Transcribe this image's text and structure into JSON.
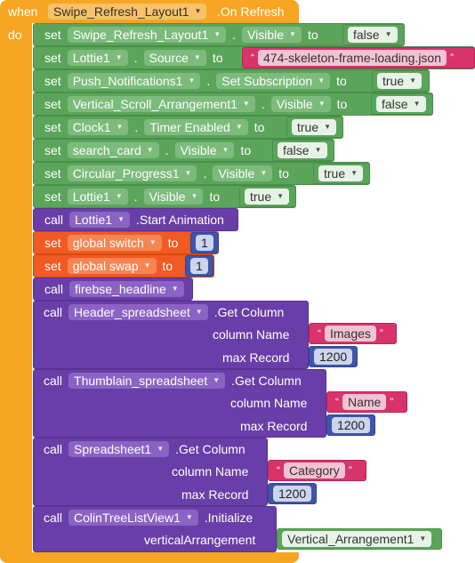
{
  "event": {
    "when": "when",
    "component": "Swipe_Refresh_Layout1",
    "event_name": ".On Refresh",
    "do": "do"
  },
  "rows": [
    {
      "kw": "set",
      "comp": "Swipe_Refresh_Layout1",
      "prop": "Visible",
      "to": "to",
      "value": "false"
    },
    {
      "kw": "set",
      "comp": "Lottie1",
      "prop": "Source",
      "to": "to",
      "value": "474-skeleton-frame-loading.json"
    },
    {
      "kw": "set",
      "comp": "Push_Notifications1",
      "prop": "Set Subscription",
      "to": "to",
      "value": "true"
    },
    {
      "kw": "set",
      "comp": "Vertical_Scroll_Arrangement1",
      "prop": "Visible",
      "to": "to",
      "value": "false"
    },
    {
      "kw": "set",
      "comp": "Clock1",
      "prop": "Timer Enabled",
      "to": "to",
      "value": "true"
    },
    {
      "kw": "set",
      "comp": "search_card",
      "prop": "Visible",
      "to": "to",
      "value": "false"
    },
    {
      "kw": "set",
      "comp": "Circular_Progress1",
      "prop": "Visible",
      "to": "to",
      "value": "true"
    },
    {
      "kw": "set",
      "comp": "Lottie1",
      "prop": "Visible",
      "to": "to",
      "value": "true"
    },
    {
      "kw": "call",
      "comp": "Lottie1",
      "method": ".Start Animation"
    },
    {
      "kw": "set",
      "var": "global switch",
      "to": "to",
      "value": "1"
    },
    {
      "kw": "set",
      "var": "global swap",
      "to": "to",
      "value": "1"
    },
    {
      "kw": "call",
      "proc": "firebse_headline"
    }
  ],
  "calls": [
    {
      "kw": "call",
      "comp": "Header_spreadsheet",
      "method": ".Get Column",
      "p1": "column Name",
      "v1": "Images",
      "p2": "max Record",
      "v2": "1200"
    },
    {
      "kw": "call",
      "comp": "Thumblain_spreadsheet",
      "method": ".Get Column",
      "p1": "column Name",
      "v1": "Name",
      "p2": "max Record",
      "v2": "1200"
    },
    {
      "kw": "call",
      "comp": "Spreadsheet1",
      "method": ".Get Column",
      "p1": "column Name",
      "v1": "Category",
      "p2": "max Record",
      "v2": "1200"
    },
    {
      "kw": "call",
      "comp": "ColinTreeListView1",
      "method": ".Initialize",
      "p1": "verticalArrangement",
      "v1": "Vertical_Arrangement1"
    }
  ],
  "colors": {
    "event": "#f6a623",
    "setter": "#5ba55b",
    "call": "#6a3ea8",
    "variable": "#f15a22",
    "text": "#d8336b",
    "number": "#3f55a8"
  }
}
